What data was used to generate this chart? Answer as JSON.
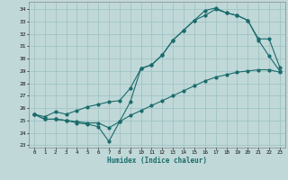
{
  "title": "",
  "xlabel": "Humidex (Indice chaleur)",
  "ylabel": "",
  "bg_color": "#c0d8d8",
  "grid_color": "#a0c4c4",
  "line_color": "#1a6b6b",
  "xlim": [
    -0.5,
    23.5
  ],
  "ylim": [
    22.8,
    34.6
  ],
  "yticks": [
    23,
    24,
    25,
    26,
    27,
    28,
    29,
    30,
    31,
    32,
    33,
    34
  ],
  "xticks": [
    0,
    1,
    2,
    3,
    4,
    5,
    6,
    7,
    8,
    9,
    10,
    11,
    12,
    13,
    14,
    15,
    16,
    17,
    18,
    19,
    20,
    21,
    22,
    23
  ],
  "line1_x": [
    0,
    1,
    2,
    3,
    4,
    5,
    6,
    7,
    8,
    9,
    10,
    11,
    12,
    13,
    14,
    15,
    16,
    17,
    18,
    19,
    20,
    21,
    22,
    23
  ],
  "line1_y": [
    25.5,
    25.1,
    25.1,
    25.0,
    24.9,
    24.8,
    24.8,
    24.4,
    24.9,
    25.4,
    25.8,
    26.2,
    26.6,
    27.0,
    27.4,
    27.8,
    28.2,
    28.5,
    28.7,
    28.9,
    29.0,
    29.1,
    29.1,
    28.9
  ],
  "line2_x": [
    0,
    1,
    2,
    3,
    4,
    5,
    6,
    7,
    8,
    9,
    10,
    11,
    12,
    13,
    14,
    15,
    16,
    17,
    18,
    19,
    20,
    21,
    22,
    23
  ],
  "line2_y": [
    25.5,
    25.1,
    25.1,
    25.0,
    24.8,
    24.7,
    24.5,
    23.3,
    24.9,
    26.5,
    29.2,
    29.5,
    30.3,
    31.5,
    32.3,
    33.1,
    33.5,
    34.0,
    33.7,
    33.5,
    33.1,
    31.5,
    30.2,
    29.0
  ],
  "line3_x": [
    0,
    1,
    2,
    3,
    4,
    5,
    6,
    7,
    8,
    9,
    10,
    11,
    12,
    13,
    14,
    15,
    16,
    17,
    18,
    19,
    20,
    21,
    22,
    23
  ],
  "line3_y": [
    25.5,
    25.3,
    25.7,
    25.5,
    25.8,
    26.1,
    26.3,
    26.5,
    26.6,
    27.6,
    29.2,
    29.5,
    30.3,
    31.5,
    32.3,
    33.1,
    33.9,
    34.1,
    33.7,
    33.5,
    33.1,
    31.6,
    31.6,
    29.3
  ]
}
